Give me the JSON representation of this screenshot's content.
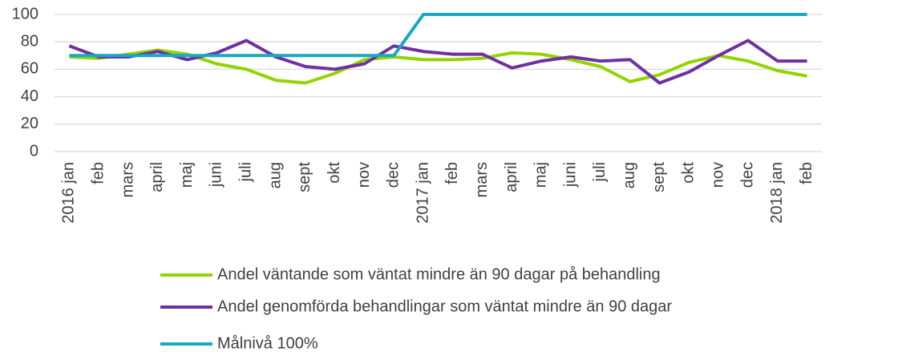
{
  "chart_data": {
    "type": "line",
    "categories": [
      "2016 jan",
      "feb",
      "mars",
      "april",
      "maj",
      "juni",
      "juli",
      "aug",
      "sept",
      "okt",
      "nov",
      "dec",
      "2017 jan",
      "feb",
      "mars",
      "april",
      "maj",
      "juni",
      "juli",
      "aug",
      "sept",
      "okt",
      "nov",
      "dec",
      "2018 jan",
      "feb"
    ],
    "series": [
      {
        "name": "Andel väntande som väntat mindre än 90 dagar på behandling",
        "color": "#92d400",
        "values": [
          69,
          68,
          71,
          74,
          71,
          64,
          60,
          52,
          50,
          57,
          67,
          69,
          67,
          67,
          68,
          72,
          71,
          67,
          62,
          51,
          56,
          65,
          70,
          66,
          59,
          55
        ]
      },
      {
        "name": "Andel genomförda behandlingar som väntat mindre än 90 dagar",
        "color": "#7030a0",
        "values": [
          77,
          69,
          69,
          73,
          67,
          72,
          81,
          69,
          62,
          60,
          64,
          77,
          73,
          71,
          71,
          61,
          66,
          69,
          66,
          67,
          50,
          58,
          70,
          81,
          66,
          66
        ]
      },
      {
        "name": "Målnivå 100%",
        "color": "#17a9c4",
        "values": [
          70,
          70,
          70,
          70,
          70,
          70,
          70,
          70,
          70,
          70,
          70,
          70,
          100,
          100,
          100,
          100,
          100,
          100,
          100,
          100,
          100,
          100,
          100,
          100,
          100,
          100
        ]
      }
    ],
    "ylim": [
      0,
      100
    ],
    "yticks": [
      0,
      20,
      40,
      60,
      80,
      100
    ],
    "grid": true
  }
}
